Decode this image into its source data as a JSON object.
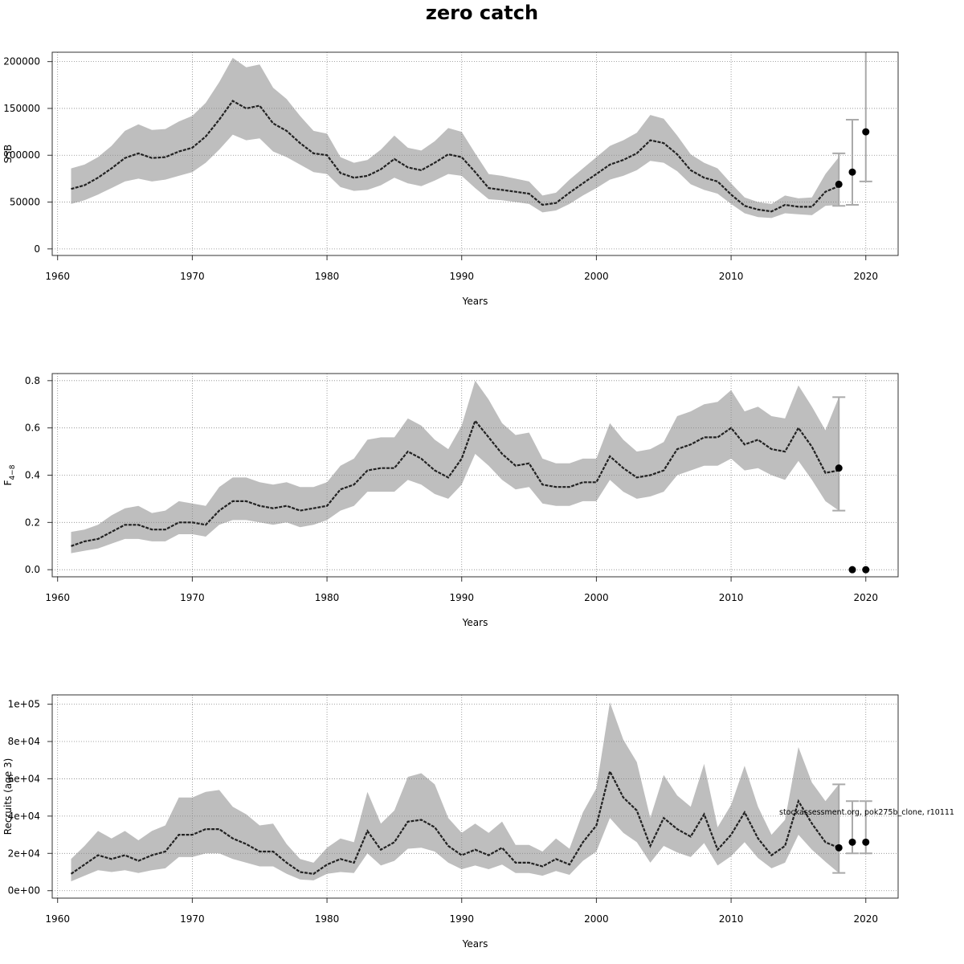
{
  "title": "zero catch",
  "watermark": "stockassessment.org, pok275b_clone, r10111",
  "colors": {
    "band": "#bebebe",
    "line": "#222222",
    "grid": "#888888",
    "errorbar": "#aaaaaa",
    "point": "#000000"
  },
  "chart_data": [
    {
      "type": "line",
      "ylabel": "SSB",
      "xlabel": "Years",
      "xlim": [
        1959.6,
        2022.4
      ],
      "ylim": [
        -7000,
        210000
      ],
      "xticks": [
        1960,
        1970,
        1980,
        1990,
        2000,
        2010,
        2020
      ],
      "yticks": [
        0,
        50000,
        100000,
        150000,
        200000
      ],
      "ytick_labels": [
        "0",
        "50000",
        "100000",
        "150000",
        "200000"
      ],
      "grid": true,
      "series": [
        {
          "x": [
            1961,
            1962,
            1963,
            1964,
            1965,
            1966,
            1967,
            1968,
            1969,
            1970,
            1971,
            1972,
            1973,
            1974,
            1975,
            1976,
            1977,
            1978,
            1979,
            1980,
            1981,
            1982,
            1983,
            1984,
            1985,
            1986,
            1987,
            1988,
            1989,
            1990,
            1991,
            1992,
            1993,
            1994,
            1995,
            1996,
            1997,
            1998,
            1999,
            2000,
            2001,
            2002,
            2003,
            2004,
            2005,
            2006,
            2007,
            2008,
            2009,
            2010,
            2011,
            2012,
            2013,
            2014,
            2015,
            2016,
            2017,
            2018
          ],
          "y": [
            64000,
            68000,
            76000,
            86000,
            97000,
            102000,
            97000,
            98000,
            104000,
            108000,
            120000,
            138000,
            158000,
            150000,
            153000,
            134000,
            126000,
            113000,
            102000,
            100000,
            81000,
            76000,
            78000,
            85000,
            96000,
            87000,
            84000,
            92000,
            101000,
            98000,
            82000,
            65000,
            63000,
            61000,
            59000,
            47000,
            49000,
            60000,
            70000,
            80000,
            90000,
            95000,
            102000,
            116000,
            113000,
            101000,
            84000,
            76000,
            72000,
            58000,
            46000,
            42000,
            40000,
            47000,
            45000,
            45000,
            61000,
            67000
          ],
          "lower": [
            48000,
            52000,
            58000,
            65000,
            72000,
            75000,
            72000,
            74000,
            78000,
            82000,
            92000,
            106000,
            122000,
            116000,
            118000,
            104000,
            98000,
            90000,
            82000,
            80000,
            66000,
            62000,
            63000,
            68000,
            76000,
            70000,
            67000,
            73000,
            80000,
            78000,
            65000,
            53000,
            52000,
            50000,
            48000,
            39000,
            41000,
            48000,
            57000,
            65000,
            74000,
            78000,
            84000,
            94000,
            92000,
            83000,
            69000,
            63000,
            59000,
            48000,
            38000,
            34000,
            33000,
            38000,
            37000,
            36000,
            46000,
            47000
          ],
          "upper": [
            86000,
            90000,
            98000,
            110000,
            126000,
            133000,
            127000,
            128000,
            136000,
            142000,
            156000,
            178000,
            204000,
            194000,
            197000,
            172000,
            160000,
            142000,
            126000,
            123000,
            98000,
            92000,
            95000,
            106000,
            121000,
            108000,
            105000,
            115000,
            129000,
            125000,
            102000,
            80000,
            78000,
            75000,
            72000,
            57000,
            60000,
            74000,
            86000,
            98000,
            110000,
            116000,
            124000,
            143000,
            139000,
            121000,
            101000,
            92000,
            86000,
            70000,
            55000,
            50000,
            48000,
            57000,
            54000,
            55000,
            80000,
            98000
          ]
        }
      ],
      "points": [
        {
          "x": 2018,
          "y": 69000
        },
        {
          "x": 2019,
          "y": 82000
        },
        {
          "x": 2020,
          "y": 125000
        }
      ],
      "errorbars": [
        {
          "x": 2018,
          "lo": 46000,
          "hi": 102000
        },
        {
          "x": 2019,
          "lo": 47000,
          "hi": 138000
        },
        {
          "x": 2020,
          "lo": 72000,
          "hi": 220000
        }
      ]
    },
    {
      "type": "line",
      "ylabel": "F",
      "ylabel_sub": "4−8",
      "xlabel": "Years",
      "xlim": [
        1959.6,
        2022.4
      ],
      "ylim": [
        -0.03,
        0.83
      ],
      "xticks": [
        1960,
        1970,
        1980,
        1990,
        2000,
        2010,
        2020
      ],
      "yticks": [
        0,
        0.2,
        0.4,
        0.6,
        0.8
      ],
      "ytick_labels": [
        "0.0",
        "0.2",
        "0.4",
        "0.6",
        "0.8"
      ],
      "grid": true,
      "series": [
        {
          "x": [
            1961,
            1962,
            1963,
            1964,
            1965,
            1966,
            1967,
            1968,
            1969,
            1970,
            1971,
            1972,
            1973,
            1974,
            1975,
            1976,
            1977,
            1978,
            1979,
            1980,
            1981,
            1982,
            1983,
            1984,
            1985,
            1986,
            1987,
            1988,
            1989,
            1990,
            1991,
            1992,
            1993,
            1994,
            1995,
            1996,
            1997,
            1998,
            1999,
            2000,
            2001,
            2002,
            2003,
            2004,
            2005,
            2006,
            2007,
            2008,
            2009,
            2010,
            2011,
            2012,
            2013,
            2014,
            2015,
            2016,
            2017,
            2018
          ],
          "y": [
            0.1,
            0.12,
            0.13,
            0.16,
            0.19,
            0.19,
            0.17,
            0.17,
            0.2,
            0.2,
            0.19,
            0.25,
            0.29,
            0.29,
            0.27,
            0.26,
            0.27,
            0.25,
            0.26,
            0.27,
            0.34,
            0.36,
            0.42,
            0.43,
            0.43,
            0.5,
            0.47,
            0.42,
            0.39,
            0.47,
            0.63,
            0.56,
            0.49,
            0.44,
            0.45,
            0.36,
            0.35,
            0.35,
            0.37,
            0.37,
            0.48,
            0.43,
            0.39,
            0.4,
            0.42,
            0.51,
            0.53,
            0.56,
            0.56,
            0.6,
            0.53,
            0.55,
            0.51,
            0.5,
            0.6,
            0.52,
            0.41,
            0.42
          ],
          "lower": [
            0.07,
            0.08,
            0.09,
            0.11,
            0.13,
            0.13,
            0.12,
            0.12,
            0.15,
            0.15,
            0.14,
            0.19,
            0.21,
            0.21,
            0.2,
            0.19,
            0.2,
            0.18,
            0.19,
            0.21,
            0.25,
            0.27,
            0.33,
            0.33,
            0.33,
            0.38,
            0.36,
            0.32,
            0.3,
            0.36,
            0.49,
            0.44,
            0.38,
            0.34,
            0.35,
            0.28,
            0.27,
            0.27,
            0.29,
            0.29,
            0.38,
            0.33,
            0.3,
            0.31,
            0.33,
            0.4,
            0.42,
            0.44,
            0.44,
            0.47,
            0.42,
            0.43,
            0.4,
            0.38,
            0.46,
            0.38,
            0.29,
            0.25
          ],
          "upper": [
            0.16,
            0.17,
            0.19,
            0.23,
            0.26,
            0.27,
            0.24,
            0.25,
            0.29,
            0.28,
            0.27,
            0.35,
            0.39,
            0.39,
            0.37,
            0.36,
            0.37,
            0.35,
            0.35,
            0.37,
            0.44,
            0.47,
            0.55,
            0.56,
            0.56,
            0.64,
            0.61,
            0.55,
            0.51,
            0.61,
            0.8,
            0.72,
            0.62,
            0.57,
            0.58,
            0.47,
            0.45,
            0.45,
            0.47,
            0.47,
            0.62,
            0.55,
            0.5,
            0.51,
            0.54,
            0.65,
            0.67,
            0.7,
            0.71,
            0.76,
            0.67,
            0.69,
            0.65,
            0.64,
            0.78,
            0.69,
            0.59,
            0.73
          ]
        }
      ],
      "points": [
        {
          "x": 2018,
          "y": 0.43
        },
        {
          "x": 2019,
          "y": 0.0
        },
        {
          "x": 2020,
          "y": 0.0
        }
      ],
      "errorbars": [
        {
          "x": 2018,
          "lo": 0.25,
          "hi": 0.73
        }
      ]
    },
    {
      "type": "line",
      "ylabel": "Recruits (age 3)",
      "xlabel": "Years",
      "xlim": [
        1959.6,
        2022.4
      ],
      "ylim": [
        -4000,
        105000
      ],
      "xticks": [
        1960,
        1970,
        1980,
        1990,
        2000,
        2010,
        2020
      ],
      "yticks": [
        0,
        20000,
        40000,
        60000,
        80000,
        100000
      ],
      "ytick_labels": [
        "0e+00",
        "2e+04",
        "4e+04",
        "6e+04",
        "8e+04",
        "1e+05"
      ],
      "grid": true,
      "series": [
        {
          "x": [
            1961,
            1962,
            1963,
            1964,
            1965,
            1966,
            1967,
            1968,
            1969,
            1970,
            1971,
            1972,
            1973,
            1974,
            1975,
            1976,
            1977,
            1978,
            1979,
            1980,
            1981,
            1982,
            1983,
            1984,
            1985,
            1986,
            1987,
            1988,
            1989,
            1990,
            1991,
            1992,
            1993,
            1994,
            1995,
            1996,
            1997,
            1998,
            1999,
            2000,
            2001,
            2002,
            2003,
            2004,
            2005,
            2006,
            2007,
            2008,
            2009,
            2010,
            2011,
            2012,
            2013,
            2014,
            2015,
            2016,
            2017,
            2018
          ],
          "y": [
            9000,
            14000,
            19000,
            17000,
            19000,
            16000,
            19000,
            21000,
            30000,
            30000,
            33000,
            33000,
            28000,
            25000,
            21000,
            21000,
            15000,
            10000,
            9000,
            14000,
            17000,
            15000,
            32000,
            22000,
            26000,
            37000,
            38000,
            34000,
            24000,
            19000,
            22000,
            19000,
            23000,
            15000,
            15000,
            13000,
            17000,
            14000,
            26000,
            35000,
            64000,
            50000,
            43000,
            24000,
            39000,
            33000,
            29000,
            41000,
            22000,
            30000,
            42000,
            28000,
            19000,
            24000,
            48000,
            36000,
            26000,
            23000
          ],
          "lower": [
            5000,
            8000,
            11000,
            10000,
            11000,
            9500,
            11000,
            12000,
            18000,
            18000,
            20000,
            20000,
            17000,
            15000,
            13000,
            13000,
            9000,
            6000,
            5500,
            9000,
            10000,
            9500,
            20000,
            13500,
            16000,
            22500,
            23000,
            21000,
            15000,
            11500,
            13500,
            11500,
            14000,
            9500,
            9500,
            8000,
            10500,
            8500,
            16000,
            21000,
            39000,
            31000,
            26000,
            15000,
            24000,
            20500,
            18000,
            25500,
            13500,
            18500,
            26000,
            17500,
            12000,
            15000,
            30000,
            22000,
            15500,
            9500
          ],
          "upper": [
            17000,
            24000,
            32000,
            28000,
            32000,
            27000,
            32000,
            35000,
            50000,
            50000,
            53000,
            54000,
            45000,
            41000,
            35000,
            36000,
            25000,
            17000,
            15000,
            23000,
            28000,
            26000,
            53000,
            36000,
            43000,
            61000,
            63000,
            57000,
            39000,
            31000,
            36000,
            31000,
            37000,
            24500,
            24500,
            21000,
            28000,
            22500,
            42000,
            55000,
            101000,
            81000,
            69000,
            39000,
            62000,
            51000,
            45000,
            68000,
            34000,
            46000,
            67000,
            45000,
            30000,
            38000,
            77000,
            58000,
            48000,
            57000
          ]
        }
      ],
      "points": [
        {
          "x": 2018,
          "y": 23000
        },
        {
          "x": 2019,
          "y": 26000
        },
        {
          "x": 2020,
          "y": 26000
        }
      ],
      "errorbars": [
        {
          "x": 2018,
          "lo": 9500,
          "hi": 57000
        },
        {
          "x": 2019,
          "lo": 20000,
          "hi": 48000
        },
        {
          "x": 2020,
          "lo": 20000,
          "hi": 48000
        }
      ]
    }
  ]
}
